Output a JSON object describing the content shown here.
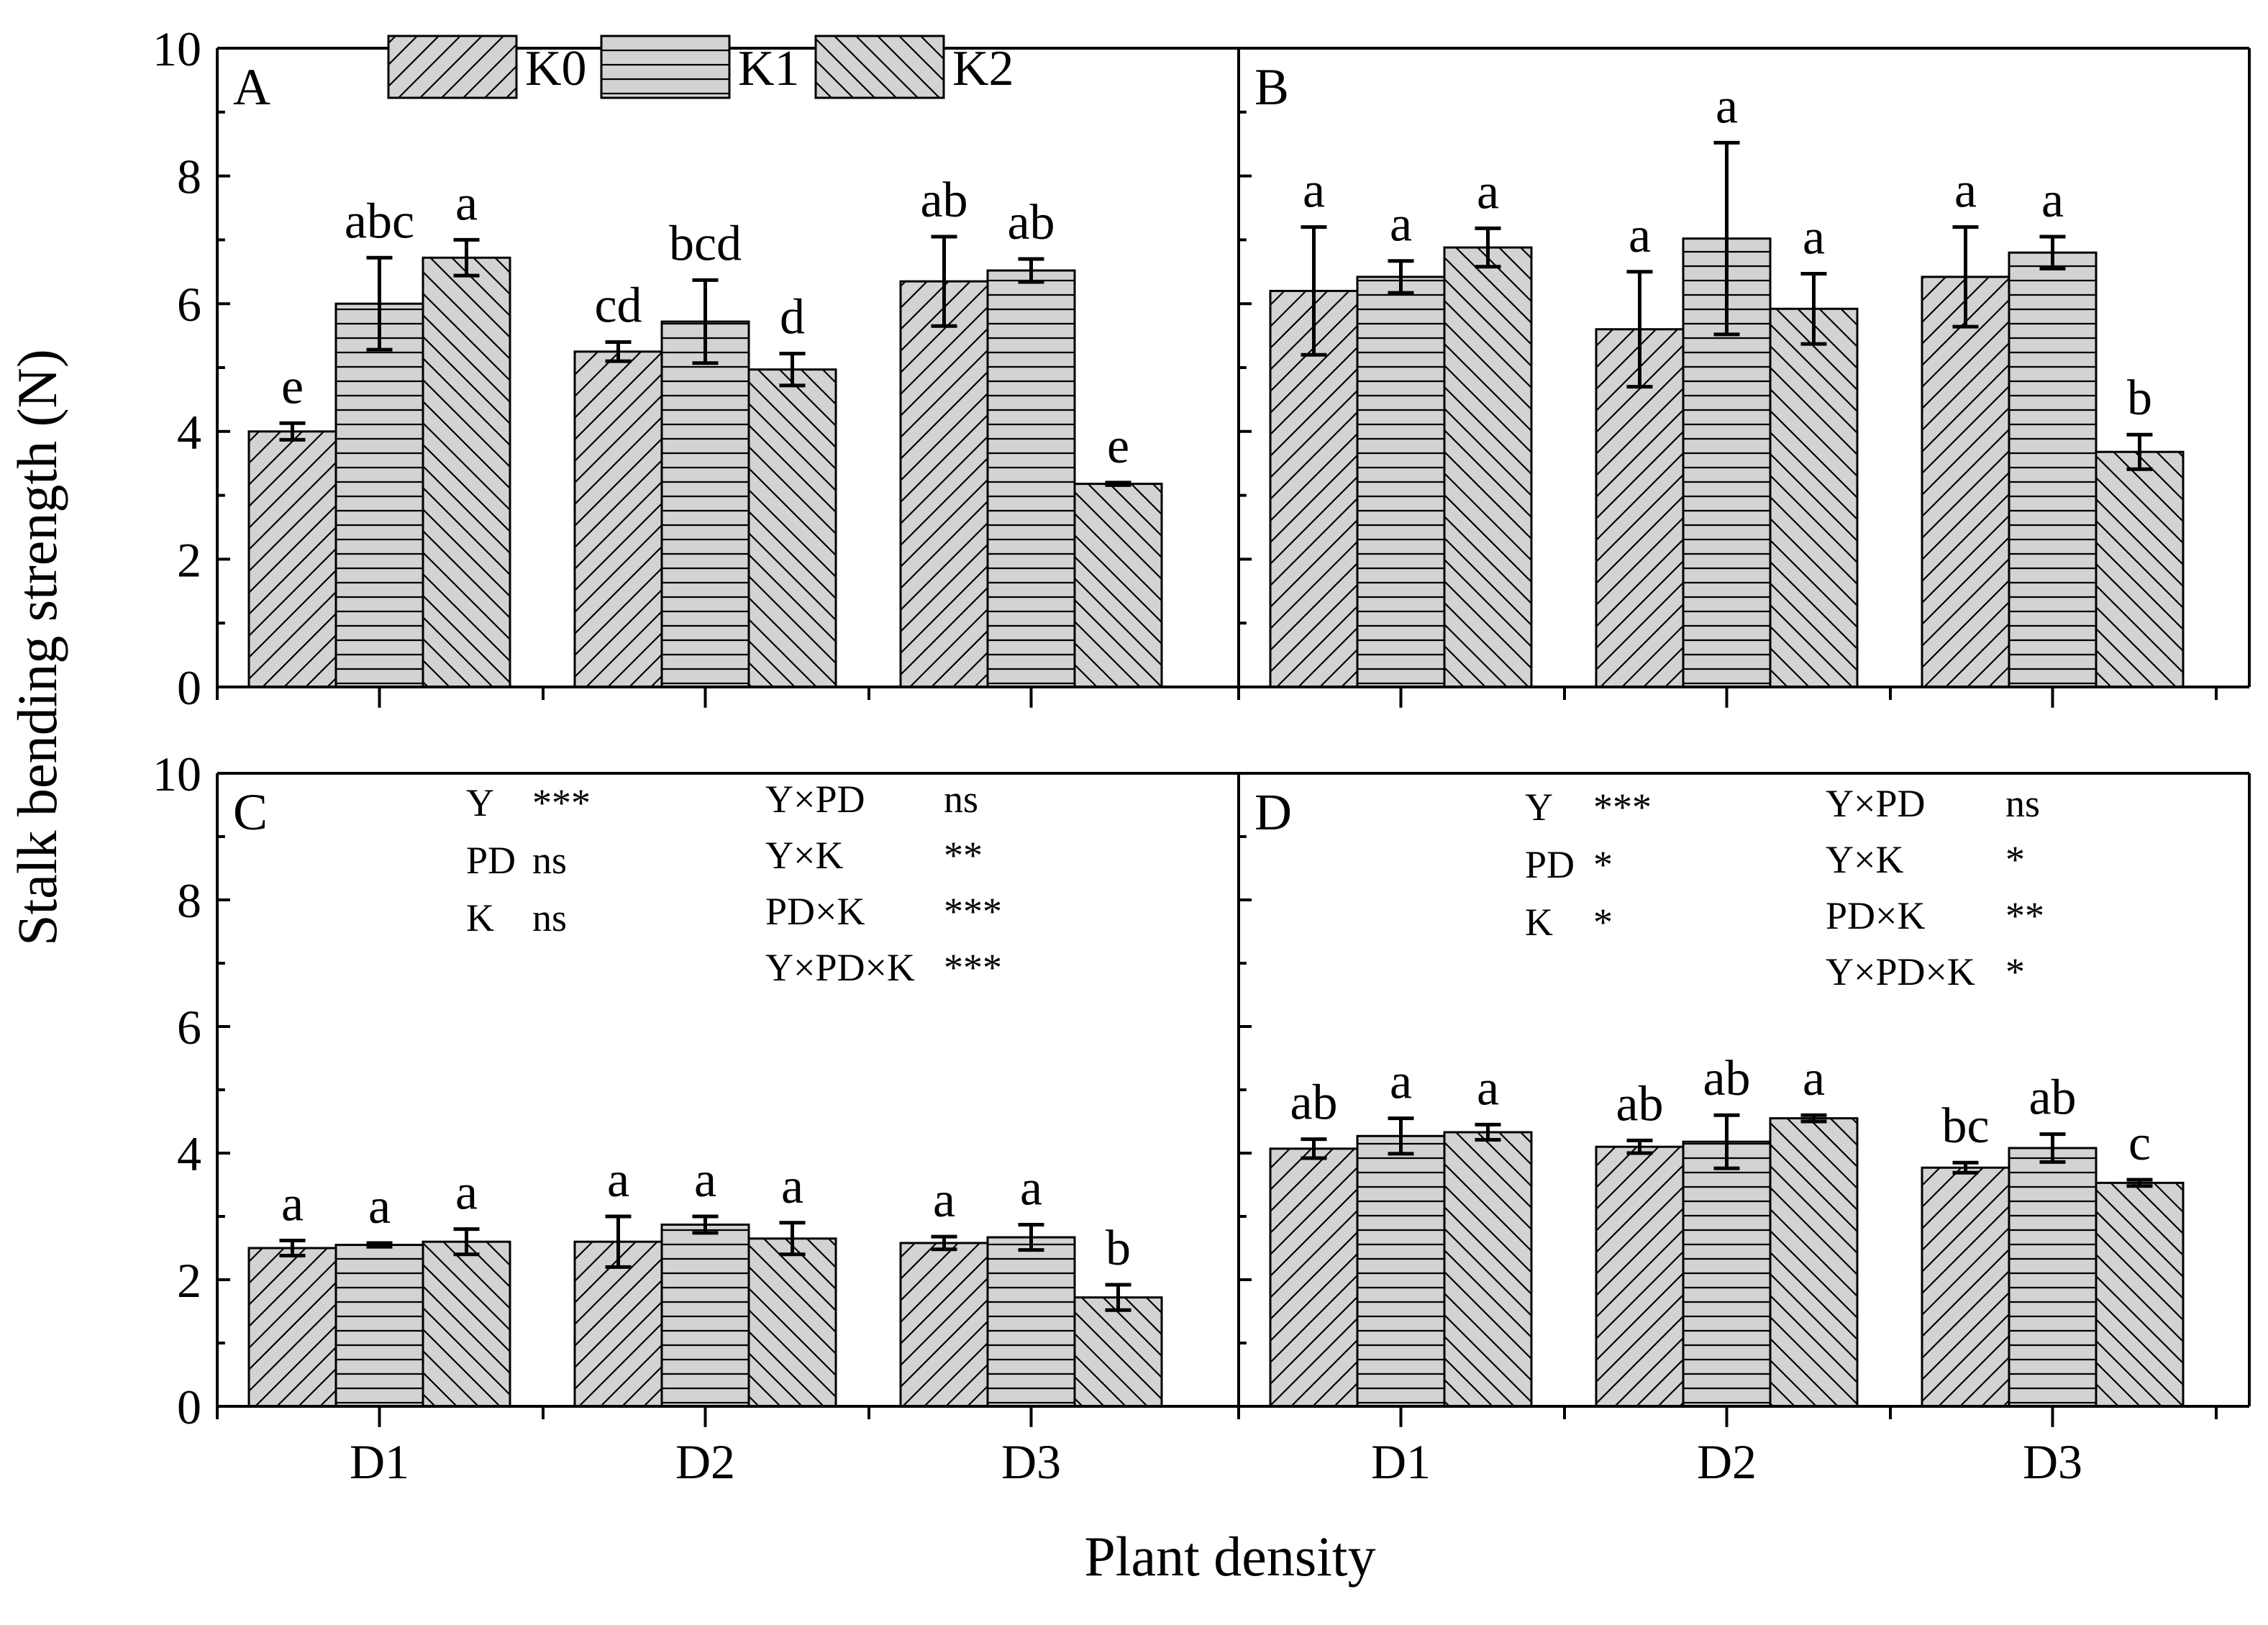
{
  "y_axis_label": "Stalk bending strength (N)",
  "x_axis_label": "Plant density",
  "legend": {
    "entries": [
      {
        "name": "K0",
        "pattern": "diag-fwd"
      },
      {
        "name": "K1",
        "pattern": "horiz"
      },
      {
        "name": "K2",
        "pattern": "diag-back"
      }
    ]
  },
  "colors": {
    "bar_fill": "#d3d3d3",
    "ink": "#000000"
  },
  "chart_data": [
    {
      "type": "bar",
      "panel_label": "A",
      "categories": [
        "D1",
        "D2",
        "D3"
      ],
      "ylim": [
        0,
        10
      ],
      "yticks": [
        "0",
        "2",
        "4",
        "6",
        "8",
        "10"
      ],
      "series": [
        {
          "name": "K0",
          "values": [
            4.0,
            5.25,
            6.35
          ],
          "errors": [
            0.13,
            0.15,
            0.7
          ],
          "letters": [
            "e",
            "cd",
            "ab"
          ]
        },
        {
          "name": "K1",
          "values": [
            6.0,
            5.72,
            6.52
          ],
          "errors": [
            0.72,
            0.65,
            0.18
          ],
          "letters": [
            "abc",
            "bcd",
            "ab"
          ]
        },
        {
          "name": "K2",
          "values": [
            6.72,
            4.97,
            3.18
          ],
          "errors": [
            0.28,
            0.25,
            0.02
          ],
          "letters": [
            "a",
            "d",
            "e"
          ]
        }
      ],
      "stats": []
    },
    {
      "type": "bar",
      "panel_label": "B",
      "categories": [
        "D1",
        "D2",
        "D3"
      ],
      "ylim": [
        0,
        10
      ],
      "yticks": [
        "0",
        "2",
        "4",
        "6",
        "8",
        "10"
      ],
      "series": [
        {
          "name": "K0",
          "values": [
            6.2,
            5.6,
            6.42
          ],
          "errors": [
            1.0,
            0.9,
            0.78
          ],
          "letters": [
            "a",
            "a",
            "a"
          ]
        },
        {
          "name": "K1",
          "values": [
            6.42,
            7.02,
            6.8
          ],
          "errors": [
            0.25,
            1.5,
            0.25
          ],
          "letters": [
            "a",
            "a",
            "a"
          ]
        },
        {
          "name": "K2",
          "values": [
            6.88,
            5.92,
            3.68
          ],
          "errors": [
            0.3,
            0.55,
            0.27
          ],
          "letters": [
            "a",
            "a",
            "b"
          ]
        }
      ],
      "stats": []
    },
    {
      "type": "bar",
      "panel_label": "C",
      "categories": [
        "D1",
        "D2",
        "D3"
      ],
      "ylim": [
        0,
        10
      ],
      "yticks": [
        "0",
        "2",
        "4",
        "6",
        "8",
        "10"
      ],
      "series": [
        {
          "name": "K0",
          "values": [
            2.5,
            2.6,
            2.58
          ],
          "errors": [
            0.12,
            0.4,
            0.1
          ],
          "letters": [
            "a",
            "a",
            "a"
          ]
        },
        {
          "name": "K1",
          "values": [
            2.55,
            2.87,
            2.67
          ],
          "errors": [
            0.03,
            0.13,
            0.2
          ],
          "letters": [
            "a",
            "a",
            "a"
          ]
        },
        {
          "name": "K2",
          "values": [
            2.6,
            2.65,
            1.72
          ],
          "errors": [
            0.2,
            0.25,
            0.2
          ],
          "letters": [
            "a",
            "a",
            "b"
          ]
        }
      ],
      "stats": [
        {
          "term": "Y",
          "sig": "***"
        },
        {
          "term": "PD",
          "sig": "ns"
        },
        {
          "term": "K",
          "sig": "ns"
        },
        {
          "term": "Y×PD",
          "sig": "ns"
        },
        {
          "term": "Y×K",
          "sig": "**"
        },
        {
          "term": "PD×K",
          "sig": "***"
        },
        {
          "term": "Y×PD×K",
          "sig": "***"
        }
      ]
    },
    {
      "type": "bar",
      "panel_label": "D",
      "categories": [
        "D1",
        "D2",
        "D3"
      ],
      "ylim": [
        0,
        10
      ],
      "yticks": [
        "0",
        "2",
        "4",
        "6",
        "8",
        "10"
      ],
      "series": [
        {
          "name": "K0",
          "values": [
            4.07,
            4.1,
            3.77
          ],
          "errors": [
            0.15,
            0.1,
            0.08
          ],
          "letters": [
            "ab",
            "ab",
            "bc"
          ]
        },
        {
          "name": "K1",
          "values": [
            4.27,
            4.18,
            4.08
          ],
          "errors": [
            0.28,
            0.42,
            0.22
          ],
          "letters": [
            "a",
            "ab",
            "ab"
          ]
        },
        {
          "name": "K2",
          "values": [
            4.33,
            4.55,
            3.53
          ],
          "errors": [
            0.12,
            0.05,
            0.05
          ],
          "letters": [
            "a",
            "a",
            "c"
          ]
        }
      ],
      "stats": [
        {
          "term": "Y",
          "sig": "***"
        },
        {
          "term": "PD",
          "sig": "*"
        },
        {
          "term": "K",
          "sig": "*"
        },
        {
          "term": "Y×PD",
          "sig": "ns"
        },
        {
          "term": "Y×K",
          "sig": "*"
        },
        {
          "term": "PD×K",
          "sig": "**"
        },
        {
          "term": "Y×PD×K",
          "sig": "*"
        }
      ]
    }
  ]
}
